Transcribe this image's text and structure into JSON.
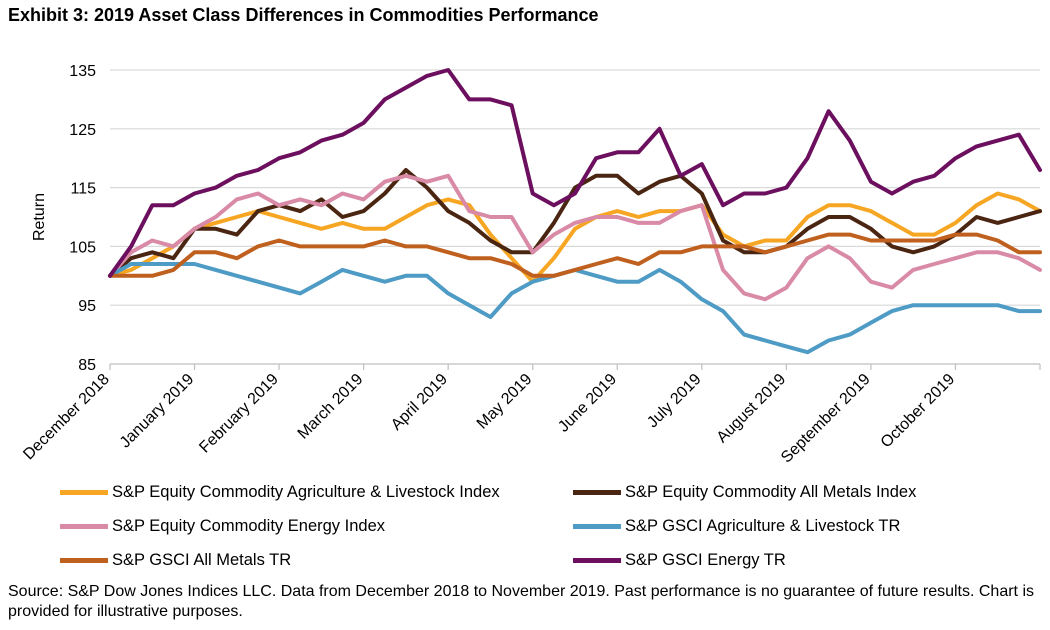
{
  "title": "Exhibit 3: 2019 Asset Class Differences in Commodities Performance",
  "source": "Source: S&P Dow Jones Indices LLC. Data from December 2018 to November 2019. Past performance is no guarantee of future results. Chart is provided for illustrative purposes.",
  "chart_data": {
    "type": "line",
    "title": "Exhibit 3: 2019 Asset Class Differences in Commodities Performance",
    "xlabel": "",
    "ylabel": "Return",
    "ylim": [
      85,
      137
    ],
    "yticks": [
      85,
      95,
      105,
      115,
      125,
      135
    ],
    "xlim": [
      0,
      11
    ],
    "xticks": [
      {
        "label": "December 2018",
        "x": 0
      },
      {
        "label": "January 2019",
        "x": 1
      },
      {
        "label": "February 2019",
        "x": 2
      },
      {
        "label": "March 2019",
        "x": 3
      },
      {
        "label": "April 2019",
        "x": 4
      },
      {
        "label": "May 2019",
        "x": 5
      },
      {
        "label": "June 2019",
        "x": 6
      },
      {
        "label": "July 2019",
        "x": 7
      },
      {
        "label": "August 2019",
        "x": 8
      },
      {
        "label": "September 2019",
        "x": 9
      },
      {
        "label": "October 2019",
        "x": 10
      }
    ],
    "grid": "horizontal",
    "legend_position": "bottom",
    "series": [
      {
        "name": "S&P Equity Commodity Agriculture & Livestock Index",
        "color": "#F6A623",
        "points": [
          [
            0,
            100
          ],
          [
            0.25,
            101
          ],
          [
            0.5,
            103
          ],
          [
            0.75,
            105
          ],
          [
            1,
            108
          ],
          [
            1.25,
            109
          ],
          [
            1.5,
            110
          ],
          [
            1.75,
            111
          ],
          [
            2,
            110
          ],
          [
            2.25,
            109
          ],
          [
            2.5,
            108
          ],
          [
            2.75,
            109
          ],
          [
            3,
            108
          ],
          [
            3.25,
            108
          ],
          [
            3.5,
            110
          ],
          [
            3.75,
            112
          ],
          [
            4,
            113
          ],
          [
            4.25,
            112
          ],
          [
            4.5,
            107
          ],
          [
            4.75,
            103
          ],
          [
            5,
            99
          ],
          [
            5.25,
            103
          ],
          [
            5.5,
            108
          ],
          [
            5.75,
            110
          ],
          [
            6,
            111
          ],
          [
            6.25,
            110
          ],
          [
            6.5,
            111
          ],
          [
            6.75,
            111
          ],
          [
            7,
            112
          ],
          [
            7.25,
            107
          ],
          [
            7.5,
            105
          ],
          [
            7.75,
            106
          ],
          [
            8,
            106
          ],
          [
            8.25,
            110
          ],
          [
            8.5,
            112
          ],
          [
            8.75,
            112
          ],
          [
            9,
            111
          ],
          [
            9.25,
            109
          ],
          [
            9.5,
            107
          ],
          [
            9.75,
            107
          ],
          [
            10,
            109
          ],
          [
            10.25,
            112
          ],
          [
            10.5,
            114
          ],
          [
            10.75,
            113
          ],
          [
            11,
            111
          ]
        ]
      },
      {
        "name": "S&P Equity Commodity All Metals Index",
        "color": "#4A2511",
        "points": [
          [
            0,
            100
          ],
          [
            0.25,
            103
          ],
          [
            0.5,
            104
          ],
          [
            0.75,
            103
          ],
          [
            1,
            108
          ],
          [
            1.25,
            108
          ],
          [
            1.5,
            107
          ],
          [
            1.75,
            111
          ],
          [
            2,
            112
          ],
          [
            2.25,
            111
          ],
          [
            2.5,
            113
          ],
          [
            2.75,
            110
          ],
          [
            3,
            111
          ],
          [
            3.25,
            114
          ],
          [
            3.5,
            118
          ],
          [
            3.75,
            115
          ],
          [
            4,
            111
          ],
          [
            4.25,
            109
          ],
          [
            4.5,
            106
          ],
          [
            4.75,
            104
          ],
          [
            5,
            104
          ],
          [
            5.25,
            109
          ],
          [
            5.5,
            115
          ],
          [
            5.75,
            117
          ],
          [
            6,
            117
          ],
          [
            6.25,
            114
          ],
          [
            6.5,
            116
          ],
          [
            6.75,
            117
          ],
          [
            7,
            114
          ],
          [
            7.25,
            106
          ],
          [
            7.5,
            104
          ],
          [
            7.75,
            104
          ],
          [
            8,
            105
          ],
          [
            8.25,
            108
          ],
          [
            8.5,
            110
          ],
          [
            8.75,
            110
          ],
          [
            9,
            108
          ],
          [
            9.25,
            105
          ],
          [
            9.5,
            104
          ],
          [
            9.75,
            105
          ],
          [
            10,
            107
          ],
          [
            10.25,
            110
          ],
          [
            10.5,
            109
          ],
          [
            10.75,
            110
          ],
          [
            11,
            111
          ]
        ]
      },
      {
        "name": "S&P Equity Commodity Energy Index",
        "color": "#D98AA6",
        "points": [
          [
            0,
            100
          ],
          [
            0.25,
            104
          ],
          [
            0.5,
            106
          ],
          [
            0.75,
            105
          ],
          [
            1,
            108
          ],
          [
            1.25,
            110
          ],
          [
            1.5,
            113
          ],
          [
            1.75,
            114
          ],
          [
            2,
            112
          ],
          [
            2.25,
            113
          ],
          [
            2.5,
            112
          ],
          [
            2.75,
            114
          ],
          [
            3,
            113
          ],
          [
            3.25,
            116
          ],
          [
            3.5,
            117
          ],
          [
            3.75,
            116
          ],
          [
            4,
            117
          ],
          [
            4.25,
            111
          ],
          [
            4.5,
            110
          ],
          [
            4.75,
            110
          ],
          [
            5,
            104
          ],
          [
            5.25,
            107
          ],
          [
            5.5,
            109
          ],
          [
            5.75,
            110
          ],
          [
            6,
            110
          ],
          [
            6.25,
            109
          ],
          [
            6.5,
            109
          ],
          [
            6.75,
            111
          ],
          [
            7,
            112
          ],
          [
            7.25,
            101
          ],
          [
            7.5,
            97
          ],
          [
            7.75,
            96
          ],
          [
            8,
            98
          ],
          [
            8.25,
            103
          ],
          [
            8.5,
            105
          ],
          [
            8.75,
            103
          ],
          [
            9,
            99
          ],
          [
            9.25,
            98
          ],
          [
            9.5,
            101
          ],
          [
            9.75,
            102
          ],
          [
            10,
            103
          ],
          [
            10.25,
            104
          ],
          [
            10.5,
            104
          ],
          [
            10.75,
            103
          ],
          [
            11,
            101
          ]
        ]
      },
      {
        "name": "S&P GSCI Agriculture & Livestock TR",
        "color": "#4E9BC5",
        "points": [
          [
            0,
            100
          ],
          [
            0.25,
            102
          ],
          [
            0.5,
            102
          ],
          [
            0.75,
            102
          ],
          [
            1,
            102
          ],
          [
            1.25,
            101
          ],
          [
            1.5,
            100
          ],
          [
            1.75,
            99
          ],
          [
            2,
            98
          ],
          [
            2.25,
            97
          ],
          [
            2.5,
            99
          ],
          [
            2.75,
            101
          ],
          [
            3,
            100
          ],
          [
            3.25,
            99
          ],
          [
            3.5,
            100
          ],
          [
            3.75,
            100
          ],
          [
            4,
            97
          ],
          [
            4.25,
            95
          ],
          [
            4.5,
            93
          ],
          [
            4.75,
            97
          ],
          [
            5,
            99
          ],
          [
            5.25,
            100
          ],
          [
            5.5,
            101
          ],
          [
            5.75,
            100
          ],
          [
            6,
            99
          ],
          [
            6.25,
            99
          ],
          [
            6.5,
            101
          ],
          [
            6.75,
            99
          ],
          [
            7,
            96
          ],
          [
            7.25,
            94
          ],
          [
            7.5,
            90
          ],
          [
            7.75,
            89
          ],
          [
            8,
            88
          ],
          [
            8.25,
            87
          ],
          [
            8.5,
            89
          ],
          [
            8.75,
            90
          ],
          [
            9,
            92
          ],
          [
            9.25,
            94
          ],
          [
            9.5,
            95
          ],
          [
            9.75,
            95
          ],
          [
            10,
            95
          ],
          [
            10.25,
            95
          ],
          [
            10.5,
            95
          ],
          [
            10.75,
            94
          ],
          [
            11,
            94
          ]
        ]
      },
      {
        "name": "S&P GSCI All Metals TR",
        "color": "#C0601E",
        "points": [
          [
            0,
            100
          ],
          [
            0.25,
            100
          ],
          [
            0.5,
            100
          ],
          [
            0.75,
            101
          ],
          [
            1,
            104
          ],
          [
            1.25,
            104
          ],
          [
            1.5,
            103
          ],
          [
            1.75,
            105
          ],
          [
            2,
            106
          ],
          [
            2.25,
            105
          ],
          [
            2.5,
            105
          ],
          [
            2.75,
            105
          ],
          [
            3,
            105
          ],
          [
            3.25,
            106
          ],
          [
            3.5,
            105
          ],
          [
            3.75,
            105
          ],
          [
            4,
            104
          ],
          [
            4.25,
            103
          ],
          [
            4.5,
            103
          ],
          [
            4.75,
            102
          ],
          [
            5,
            100
          ],
          [
            5.25,
            100
          ],
          [
            5.5,
            101
          ],
          [
            5.75,
            102
          ],
          [
            6,
            103
          ],
          [
            6.25,
            102
          ],
          [
            6.5,
            104
          ],
          [
            6.75,
            104
          ],
          [
            7,
            105
          ],
          [
            7.25,
            105
          ],
          [
            7.5,
            105
          ],
          [
            7.75,
            104
          ],
          [
            8,
            105
          ],
          [
            8.25,
            106
          ],
          [
            8.5,
            107
          ],
          [
            8.75,
            107
          ],
          [
            9,
            106
          ],
          [
            9.25,
            106
          ],
          [
            9.5,
            106
          ],
          [
            9.75,
            106
          ],
          [
            10,
            107
          ],
          [
            10.25,
            107
          ],
          [
            10.5,
            106
          ],
          [
            10.75,
            104
          ],
          [
            11,
            104
          ]
        ]
      },
      {
        "name": "S&P GSCI Energy TR",
        "color": "#6B0F5E",
        "points": [
          [
            0,
            100
          ],
          [
            0.25,
            105
          ],
          [
            0.5,
            112
          ],
          [
            0.75,
            112
          ],
          [
            1,
            114
          ],
          [
            1.25,
            115
          ],
          [
            1.5,
            117
          ],
          [
            1.75,
            118
          ],
          [
            2,
            120
          ],
          [
            2.25,
            121
          ],
          [
            2.5,
            123
          ],
          [
            2.75,
            124
          ],
          [
            3,
            126
          ],
          [
            3.25,
            130
          ],
          [
            3.5,
            132
          ],
          [
            3.75,
            134
          ],
          [
            4,
            135
          ],
          [
            4.25,
            130
          ],
          [
            4.5,
            130
          ],
          [
            4.75,
            129
          ],
          [
            5,
            114
          ],
          [
            5.25,
            112
          ],
          [
            5.5,
            114
          ],
          [
            5.75,
            120
          ],
          [
            6,
            121
          ],
          [
            6.25,
            121
          ],
          [
            6.5,
            125
          ],
          [
            6.75,
            117
          ],
          [
            7,
            119
          ],
          [
            7.25,
            112
          ],
          [
            7.5,
            114
          ],
          [
            7.75,
            114
          ],
          [
            8,
            115
          ],
          [
            8.25,
            120
          ],
          [
            8.5,
            128
          ],
          [
            8.75,
            123
          ],
          [
            9,
            116
          ],
          [
            9.25,
            114
          ],
          [
            9.5,
            116
          ],
          [
            9.75,
            117
          ],
          [
            10,
            120
          ],
          [
            10.25,
            122
          ],
          [
            10.5,
            123
          ],
          [
            10.75,
            124
          ],
          [
            11,
            118
          ]
        ]
      }
    ]
  },
  "legend": [
    {
      "label": "S&P Equity Commodity Agriculture & Livestock Index",
      "color": "#F6A623"
    },
    {
      "label": "S&P Equity Commodity All Metals Index",
      "color": "#4A2511"
    },
    {
      "label": "S&P Equity Commodity Energy Index",
      "color": "#D98AA6"
    },
    {
      "label": "S&P GSCI Agriculture & Livestock TR",
      "color": "#4E9BC5"
    },
    {
      "label": "S&P GSCI All Metals TR",
      "color": "#C0601E"
    },
    {
      "label": "S&P GSCI Energy TR",
      "color": "#6B0F5E"
    }
  ]
}
